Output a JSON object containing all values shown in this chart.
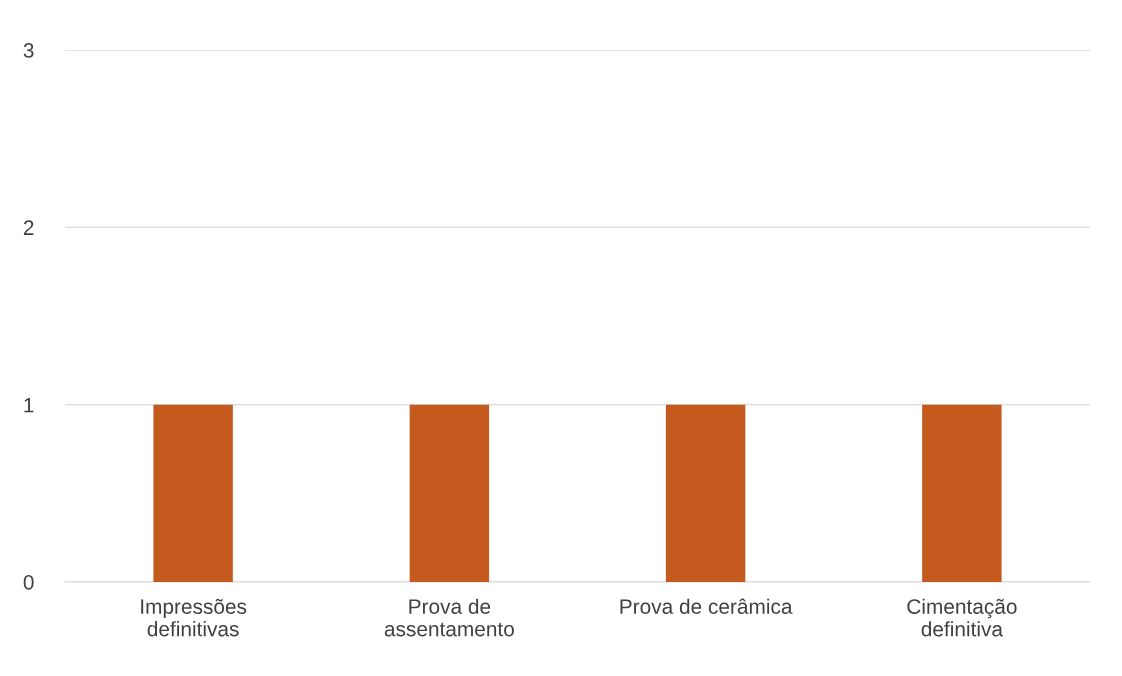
{
  "chart_data": {
    "type": "bar",
    "categories": [
      "Impressões\ndefinitivas",
      "Prova de\nassentamento",
      "Prova de cerâmica",
      "Cimentação\ndefinitiva"
    ],
    "values": [
      1,
      1,
      1,
      1
    ],
    "color": "#c55a1f",
    "ylim": [
      0,
      3
    ],
    "yticks": [
      0,
      1,
      2,
      3
    ],
    "grid": "y",
    "legend": false
  }
}
